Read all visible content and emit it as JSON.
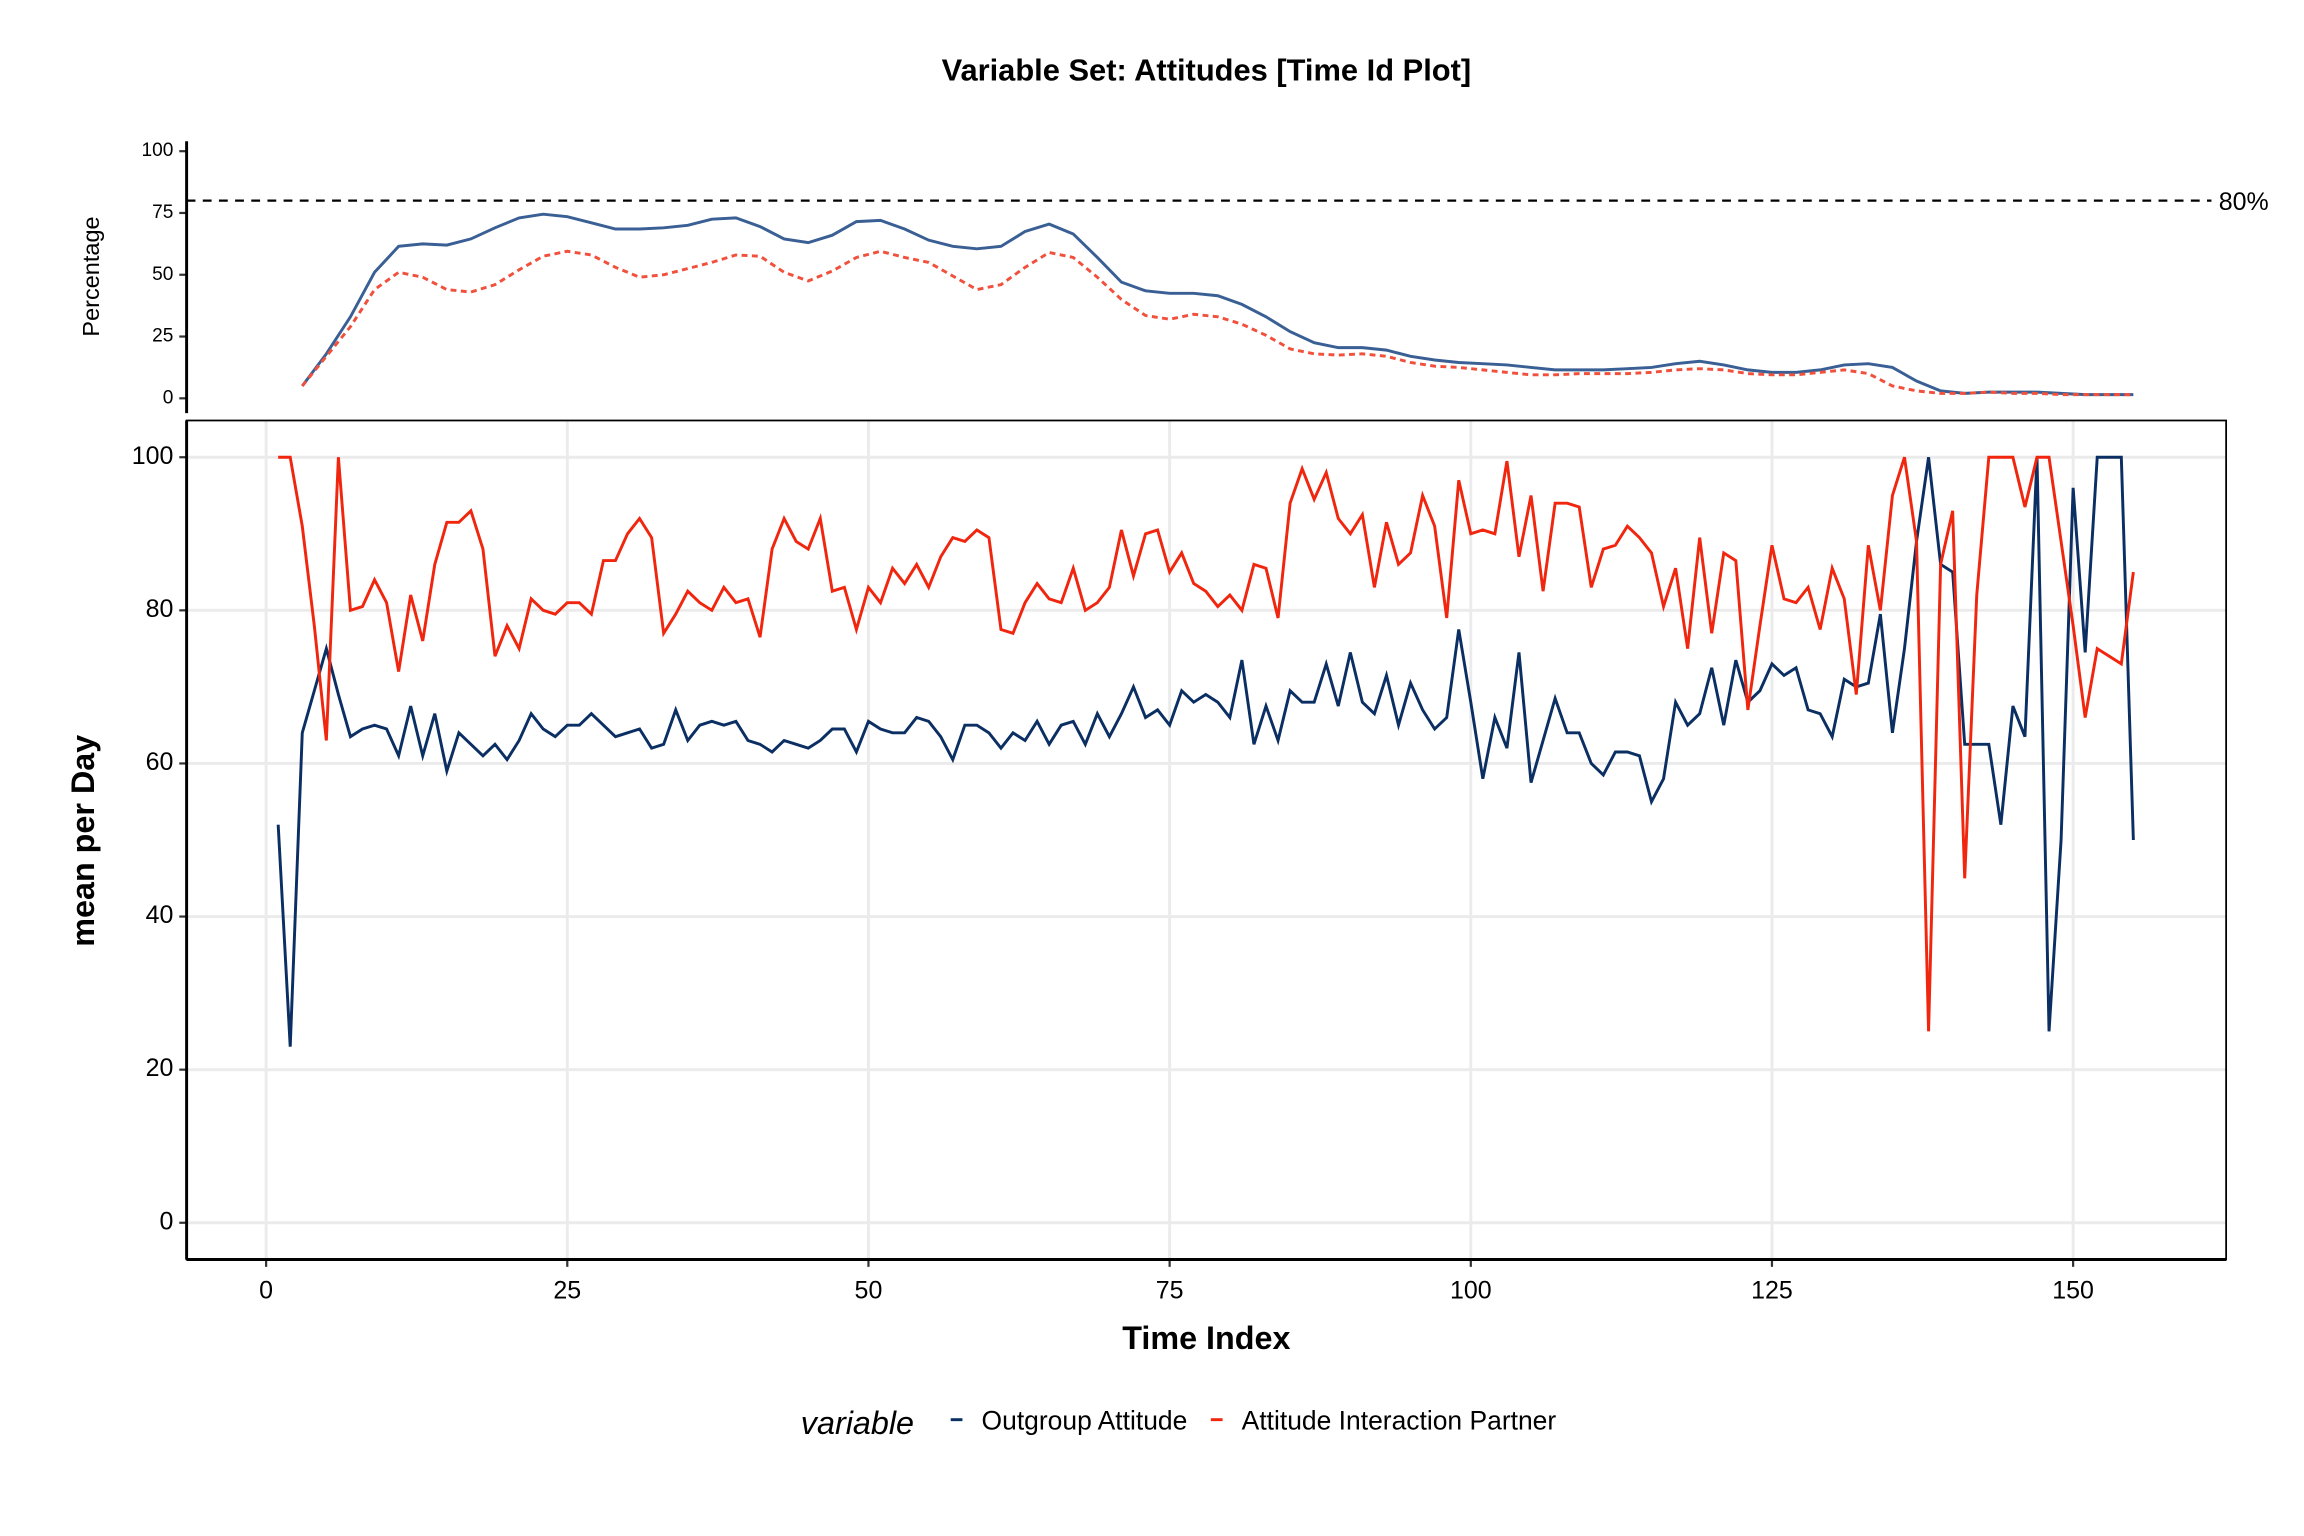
{
  "chart_data": [
    {
      "type": "line",
      "title": "Variable Set: Attitudes [Time Id Plot]",
      "ylabel": "Percentage",
      "x": [
        3,
        5,
        7,
        9,
        11,
        13,
        15,
        17,
        19,
        21,
        23,
        25,
        27,
        29,
        31,
        33,
        35,
        37,
        39,
        41,
        43,
        45,
        47,
        49,
        51,
        53,
        55,
        57,
        59,
        61,
        63,
        65,
        67,
        69,
        71,
        73,
        75,
        77,
        79,
        81,
        83,
        85,
        87,
        89,
        91,
        93,
        95,
        97,
        99,
        101,
        103,
        105,
        107,
        109,
        111,
        113,
        115,
        117,
        119,
        121,
        123,
        125,
        127,
        129,
        131,
        133,
        135,
        137,
        139,
        141,
        143,
        145,
        147,
        149,
        151,
        153,
        155
      ],
      "series": [
        {
          "color": "#3a5f94",
          "dash": false,
          "values": [
            5,
            18,
            33,
            51,
            61.5,
            62.5,
            62,
            64.5,
            69,
            73,
            74.5,
            73.5,
            71,
            68.5,
            68.5,
            69,
            70,
            72.5,
            73,
            69.5,
            64.5,
            63,
            66,
            71.5,
            72,
            68.5,
            64,
            61.5,
            60.5,
            61.5,
            67.5,
            70.5,
            66.5,
            57,
            47,
            43.5,
            42.5,
            42.5,
            41.5,
            38,
            33,
            27,
            22.5,
            20.5,
            20.5,
            19.5,
            17,
            15.5,
            14.5,
            14,
            13.5,
            12.5,
            11.5,
            11.5,
            11.5,
            12,
            12.5,
            14,
            15,
            13.5,
            11.5,
            10.5,
            10.5,
            11.5,
            13.5,
            14,
            12.5,
            7,
            3,
            2,
            2.5,
            2.5,
            2.5,
            2,
            1.5,
            1.5,
            1.5
          ]
        },
        {
          "color": "#f0503c",
          "dash": true,
          "values": [
            5,
            17,
            29,
            44,
            51,
            49,
            44,
            43,
            46,
            52,
            57.5,
            59.5,
            58,
            53,
            49,
            50,
            52.5,
            55,
            58,
            57.5,
            51,
            47.5,
            51.5,
            57,
            59.5,
            57,
            55,
            49.5,
            44,
            46,
            53,
            59,
            57,
            49,
            40,
            33.5,
            32,
            34,
            33,
            30,
            25.5,
            20,
            18,
            17.5,
            18,
            17,
            14.5,
            13,
            12.5,
            11.5,
            10.5,
            9.5,
            9.5,
            10,
            10,
            10,
            10.5,
            11.5,
            12,
            11.5,
            10,
            9.5,
            9.5,
            10.5,
            11.5,
            10,
            5,
            3,
            2,
            2,
            2.5,
            2,
            2,
            1.5,
            1.5,
            1.5,
            1.5
          ]
        }
      ],
      "hline": {
        "value": 80,
        "label": "80%"
      },
      "xlim": [
        -6.6,
        162.7
      ],
      "ylim": [
        -6,
        104
      ],
      "yticks": [
        0,
        25,
        50,
        75,
        100
      ]
    },
    {
      "type": "line",
      "xlabel": "Time Index",
      "ylabel": "mean per Day",
      "legend_title": "variable",
      "x": [
        1,
        2,
        3,
        4,
        5,
        6,
        7,
        8,
        9,
        10,
        11,
        12,
        13,
        14,
        15,
        16,
        17,
        18,
        19,
        20,
        21,
        22,
        23,
        24,
        25,
        26,
        27,
        28,
        29,
        30,
        31,
        32,
        33,
        34,
        35,
        36,
        37,
        38,
        39,
        40,
        41,
        42,
        43,
        44,
        45,
        46,
        47,
        48,
        49,
        50,
        51,
        52,
        53,
        54,
        55,
        56,
        57,
        58,
        59,
        60,
        61,
        62,
        63,
        64,
        65,
        66,
        67,
        68,
        69,
        70,
        71,
        72,
        73,
        74,
        75,
        76,
        77,
        78,
        79,
        80,
        81,
        82,
        83,
        84,
        85,
        86,
        87,
        88,
        89,
        90,
        91,
        92,
        93,
        94,
        95,
        96,
        97,
        98,
        99,
        100,
        101,
        102,
        103,
        104,
        105,
        106,
        107,
        108,
        109,
        110,
        111,
        112,
        113,
        114,
        115,
        116,
        117,
        118,
        119,
        120,
        121,
        122,
        123,
        124,
        125,
        126,
        127,
        128,
        129,
        130,
        131,
        132,
        133,
        134,
        135,
        136,
        137,
        138,
        139,
        140,
        141,
        142,
        143,
        144,
        145,
        146,
        147,
        148,
        149,
        150,
        151,
        152,
        153,
        154,
        155
      ],
      "series": [
        {
          "name": "Outgroup Attitude",
          "color": "#0b2f63",
          "values": [
            52,
            23,
            64,
            69.5,
            75,
            69,
            63.5,
            64.5,
            65,
            64.5,
            61,
            67.5,
            61,
            66.5,
            59,
            64,
            62.5,
            61,
            62.5,
            60.5,
            63,
            66.5,
            64.5,
            63.5,
            65,
            65,
            66.5,
            65,
            63.5,
            64,
            64.5,
            62,
            62.5,
            67,
            63,
            65,
            65.5,
            65,
            65.5,
            63,
            62.5,
            61.5,
            63,
            62.5,
            62,
            63,
            64.5,
            64.5,
            61.5,
            65.5,
            64.5,
            64,
            64,
            66,
            65.5,
            63.5,
            60.5,
            65,
            65,
            64,
            62,
            64,
            63,
            65.5,
            62.5,
            65,
            65.5,
            62.5,
            66.5,
            63.5,
            66.5,
            70,
            66,
            67,
            65,
            69.5,
            68,
            69,
            68,
            66,
            73.5,
            62.5,
            67.5,
            63,
            69.5,
            68,
            68,
            73,
            67.5,
            74.5,
            68,
            66.5,
            71.5,
            65,
            70.5,
            67,
            64.5,
            66,
            77.5,
            68,
            58,
            66,
            62,
            74.5,
            57.5,
            63,
            68.5,
            64,
            64,
            60,
            58.5,
            61.5,
            61.5,
            61,
            55,
            58,
            68,
            65,
            66.5,
            72.5,
            65,
            73.5,
            68,
            69.5,
            73,
            71.5,
            72.5,
            67,
            66.5,
            63.5,
            71,
            70,
            70.5,
            79.5,
            64,
            75,
            89,
            100,
            86,
            85,
            62.5,
            62.5,
            62.5,
            52,
            67.5,
            63.5,
            100,
            25,
            50,
            96,
            74.5,
            100,
            100,
            100,
            50
          ]
        },
        {
          "name": "Attitude Interaction Partner",
          "color": "#f0260f",
          "values": [
            100,
            100,
            91,
            78,
            63,
            100,
            80,
            80.5,
            84,
            81,
            72,
            82,
            76,
            86,
            91.5,
            91.5,
            93,
            88,
            74,
            78,
            75,
            81.5,
            80,
            79.5,
            81,
            81,
            79.5,
            86.5,
            86.5,
            90,
            92,
            89.5,
            77,
            79.5,
            82.5,
            81,
            80,
            83,
            81,
            81.5,
            76.5,
            88,
            92,
            89,
            88,
            92,
            82.5,
            83,
            77.5,
            83,
            81,
            85.5,
            83.5,
            86,
            83,
            87,
            89.5,
            89,
            90.5,
            89.5,
            77.5,
            77,
            81,
            83.5,
            81.5,
            81,
            85.5,
            80,
            81,
            83,
            90.5,
            84.5,
            90,
            90.5,
            85,
            87.5,
            83.5,
            82.5,
            80.5,
            82,
            80,
            86,
            85.5,
            79,
            94,
            98.5,
            94.5,
            98,
            92,
            90,
            92.5,
            83,
            91.5,
            86,
            87.5,
            95,
            91,
            79,
            97,
            90,
            90.5,
            90,
            99.5,
            87,
            95,
            82.5,
            94,
            94,
            93.5,
            83,
            88,
            88.5,
            91,
            89.5,
            87.5,
            80.5,
            85.5,
            75,
            89.5,
            77,
            87.5,
            86.5,
            67,
            78,
            88.5,
            81.5,
            81,
            83,
            77.5,
            85.5,
            81.5,
            69,
            88.5,
            80,
            95,
            100,
            89,
            25,
            86,
            93,
            45,
            82,
            100,
            100,
            100,
            93.5,
            100,
            100,
            89,
            78,
            66,
            75,
            74,
            73,
            85
          ]
        }
      ],
      "xlim": [
        -6.6,
        162.7
      ],
      "ylim": [
        -4.8,
        104.8
      ],
      "xticks": [
        0,
        25,
        50,
        75,
        100,
        125,
        150
      ],
      "yticks": [
        0,
        20,
        40,
        60,
        80,
        100
      ],
      "grid": true
    }
  ]
}
